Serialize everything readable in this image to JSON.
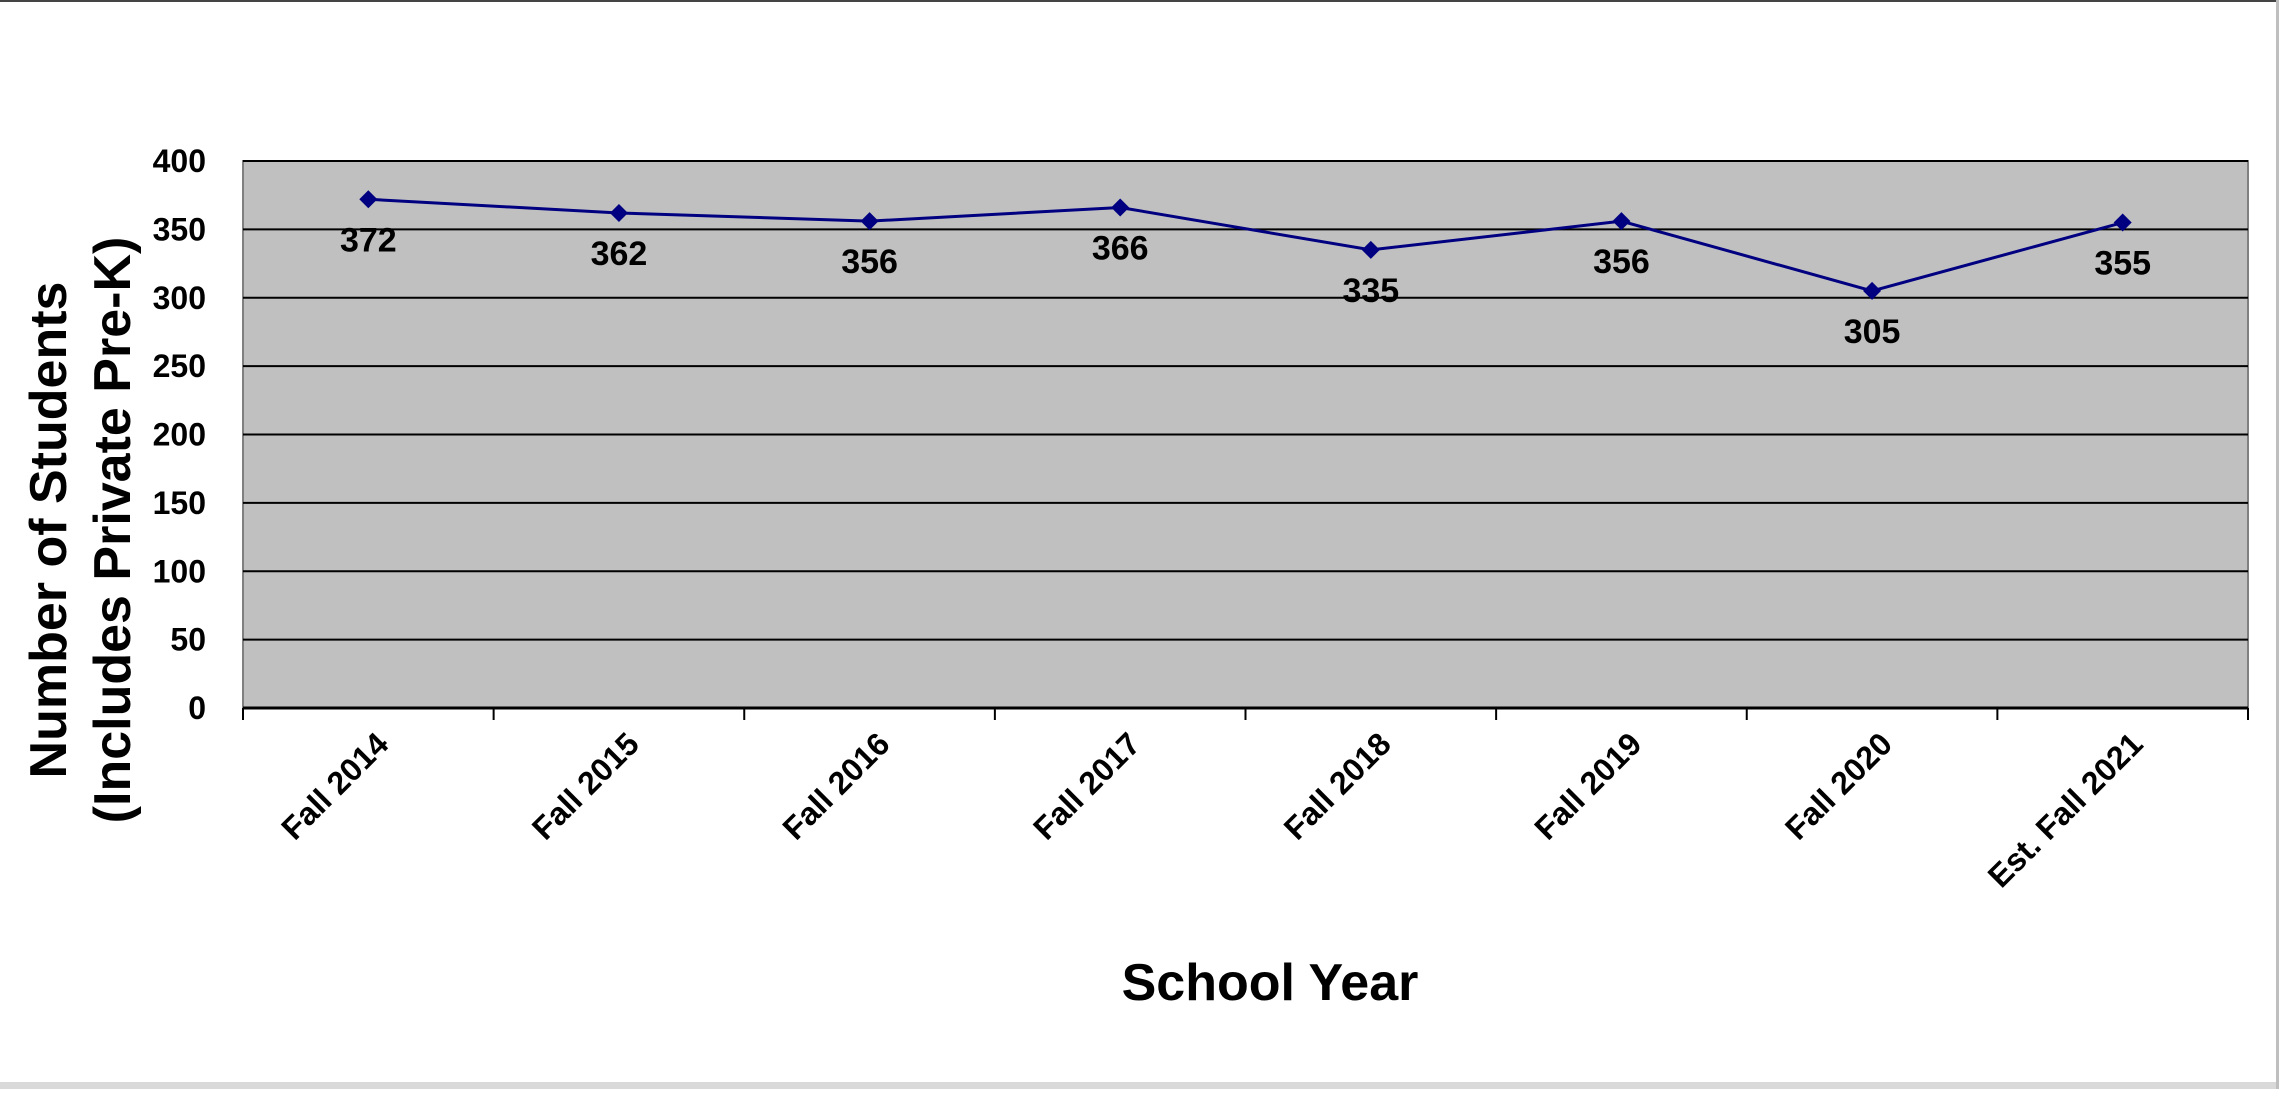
{
  "chart_data": {
    "type": "line",
    "title": "",
    "xlabel": "School Year",
    "ylabel_lines": [
      "Number of Students",
      "(Includes Private Pre-K)"
    ],
    "categories": [
      "Fall 2014",
      "Fall 2015",
      "Fall 2016",
      "Fall 2017",
      "Fall 2018",
      "Fall 2019",
      "Fall 2020",
      "Est. Fall 2021"
    ],
    "series": [
      {
        "values": [
          372,
          362,
          356,
          366,
          335,
          356,
          305,
          355
        ]
      }
    ],
    "data_labels": [
      "372",
      "362",
      "356",
      "366",
      "335",
      "356",
      "305",
      "355"
    ],
    "ylim": [
      0,
      400
    ],
    "yticks": [
      0,
      50,
      100,
      150,
      200,
      250,
      300,
      350,
      400
    ],
    "grid": true,
    "legend": "none",
    "colors": {
      "series": "#000080",
      "plot_background": "#c0c0c0",
      "gridline": "#000000",
      "axis": "#000000",
      "frame": "#808080"
    }
  }
}
